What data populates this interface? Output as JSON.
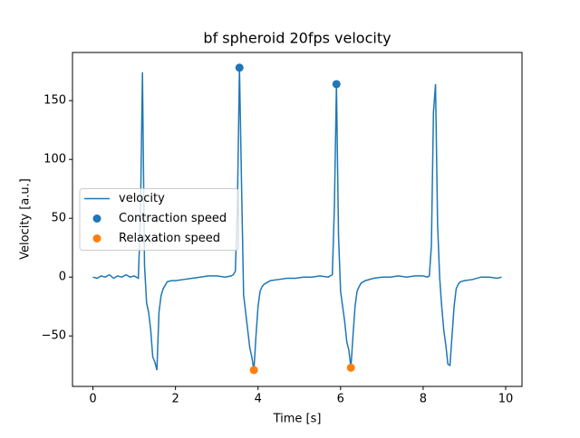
{
  "chart_data": {
    "type": "line",
    "title": "bf spheroid 20fps velocity",
    "x_label": "Time [s]",
    "y_label": "Velocity [a.u.]",
    "xlim": [
      -0.495,
      10.395
    ],
    "ylim": [
      -92.9,
      190.9
    ],
    "xticks": [
      0,
      2,
      4,
      6,
      8,
      10
    ],
    "yticks": [
      {
        "value": -50,
        "label": "−50"
      },
      0,
      50,
      100,
      150
    ],
    "legend": "center left",
    "series": [
      {
        "name": "velocity",
        "type": "line",
        "color": "#1f77b4",
        "x": [
          0,
          0.1,
          0.2,
          0.3,
          0.4,
          0.5,
          0.6,
          0.7,
          0.8,
          0.9,
          1.0,
          1.05,
          1.1,
          1.15,
          1.2,
          1.25,
          1.3,
          1.35,
          1.4,
          1.45,
          1.5,
          1.55,
          1.6,
          1.65,
          1.7,
          1.75,
          1.8,
          1.9,
          2.0,
          2.2,
          2.4,
          2.6,
          2.8,
          3.0,
          3.2,
          3.35,
          3.4,
          3.45,
          3.5,
          3.55,
          3.6,
          3.65,
          3.7,
          3.75,
          3.8,
          3.85,
          3.9,
          3.95,
          4.0,
          4.05,
          4.1,
          4.15,
          4.2,
          4.3,
          4.5,
          4.7,
          4.9,
          5.1,
          5.3,
          5.5,
          5.7,
          5.75,
          5.8,
          5.85,
          5.9,
          5.95,
          6.0,
          6.05,
          6.1,
          6.15,
          6.2,
          6.25,
          6.3,
          6.35,
          6.4,
          6.45,
          6.5,
          6.6,
          6.8,
          7.0,
          7.2,
          7.4,
          7.6,
          7.8,
          8.0,
          8.1,
          8.15,
          8.2,
          8.25,
          8.3,
          8.35,
          8.4,
          8.45,
          8.5,
          8.55,
          8.6,
          8.65,
          8.7,
          8.75,
          8.8,
          8.85,
          8.9,
          9.0,
          9.2,
          9.4,
          9.6,
          9.8,
          9.9
        ],
        "values": [
          0,
          -1,
          1,
          0,
          2,
          -1,
          1,
          0,
          2,
          0,
          1,
          0,
          -1,
          50,
          174,
          10,
          -22,
          -30,
          -45,
          -68,
          -72,
          -79,
          -30,
          -16,
          -10,
          -7,
          -4,
          -3,
          -3,
          -2,
          -1,
          0,
          1,
          1,
          0,
          1,
          2,
          5,
          60,
          178,
          80,
          -15,
          -30,
          -45,
          -60,
          -68,
          -79,
          -50,
          -25,
          -12,
          -8,
          -6,
          -5,
          -3,
          -2,
          -1,
          -1,
          0,
          0,
          1,
          0,
          1,
          2,
          60,
          164,
          35,
          -12,
          -25,
          -38,
          -55,
          -62,
          -77,
          -50,
          -25,
          -12,
          -8,
          -5,
          -3,
          -1,
          0,
          0,
          1,
          0,
          1,
          1,
          0,
          1,
          27,
          140,
          164,
          45,
          0,
          -25,
          -45,
          -58,
          -74,
          -75,
          -50,
          -25,
          -10,
          -6,
          -4,
          -3,
          -2,
          0,
          0,
          -1,
          0
        ]
      },
      {
        "name": "Contraction speed",
        "type": "scatter",
        "color": "#1f77b4",
        "x": [
          3.55,
          5.9
        ],
        "values": [
          178,
          164
        ]
      },
      {
        "name": "Relaxation speed",
        "type": "scatter",
        "color": "#ff7f0e",
        "x": [
          3.9,
          6.25
        ],
        "values": [
          -79,
          -77
        ]
      }
    ]
  }
}
